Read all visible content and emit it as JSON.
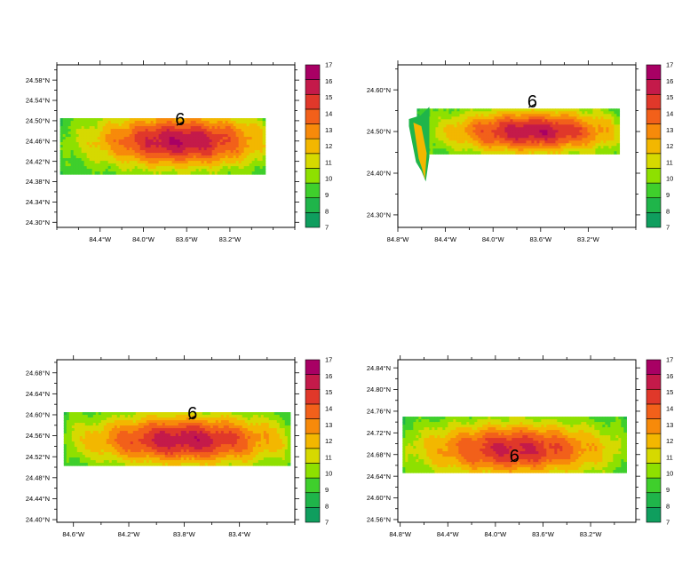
{
  "colorbar": {
    "levels": [
      "7",
      "8",
      "9",
      "10",
      "11",
      "12",
      "13",
      "14",
      "15",
      "16",
      "17"
    ],
    "colors": [
      "#0f9e5e",
      "#1fb54a",
      "#3fcf2c",
      "#8ee000",
      "#d6d900",
      "#f3b700",
      "#f78a0a",
      "#f2601a",
      "#e0382a",
      "#c41a4a",
      "#a80064"
    ]
  },
  "chart_data": [
    {
      "type": "heatmap",
      "xticks": [
        "84.4°W",
        "84.0°W",
        "83.6°W",
        "83.2°W"
      ],
      "yticks": [
        "24.30°N",
        "24.34°N",
        "24.38°N",
        "24.42°N",
        "24.46°N",
        "24.50°N",
        "24.54°N",
        "24.58°N"
      ],
      "xlim": [
        -84.8,
        -82.6
      ],
      "ylim": [
        24.29,
        24.61
      ],
      "marker": "6",
      "marker_pos": [
        -83.66,
        24.505
      ],
      "field": {
        "west": -84.77,
        "east": -82.88,
        "south": 24.398,
        "north": 24.505,
        "center": [
          -83.66,
          24.46
        ],
        "peak": 16.4,
        "edge": 8.4,
        "rx": 0.95,
        "ry": 0.062
      }
    },
    {
      "type": "heatmap",
      "xticks": [
        "84.8°W",
        "84.4°W",
        "84.0°W",
        "83.6°W",
        "83.2°W"
      ],
      "yticks": [
        "24.30°N",
        "24.40°N",
        "24.50°N",
        "24.60°N"
      ],
      "xlim": [
        -84.8,
        -82.8
      ],
      "ylim": [
        24.27,
        24.66
      ],
      "marker": "6",
      "marker_pos": [
        -83.67,
        24.575
      ],
      "field": {
        "west": -84.64,
        "east": -82.95,
        "south": 24.448,
        "north": 24.555,
        "center": [
          -83.67,
          24.5
        ],
        "peak": 16.3,
        "edge": 8.4,
        "rx": 0.85,
        "ry": 0.06
      },
      "spike": {
        "x": -84.58,
        "top": 24.53,
        "bottom": 24.38
      }
    },
    {
      "type": "heatmap",
      "xticks": [
        "84.6°W",
        "84.2°W",
        "83.8°W",
        "83.4°W"
      ],
      "yticks": [
        "24.40°N",
        "24.44°N",
        "24.48°N",
        "24.52°N",
        "24.56°N",
        "24.60°N",
        "24.64°N",
        "24.68°N"
      ],
      "xlim": [
        -84.72,
        -83.0
      ],
      "ylim": [
        24.395,
        24.705
      ],
      "marker": "6",
      "marker_pos": [
        -83.74,
        24.605
      ],
      "field": {
        "west": -84.67,
        "east": -83.04,
        "south": 24.505,
        "north": 24.605,
        "center": [
          -83.8,
          24.552
        ],
        "peak": 16.2,
        "edge": 8.4,
        "rx": 0.85,
        "ry": 0.056
      }
    },
    {
      "type": "heatmap",
      "xticks": [
        "84.8°W",
        "84.4°W",
        "84.0°W",
        "83.6°W",
        "83.2°W"
      ],
      "yticks": [
        "24.56°N",
        "24.60°N",
        "24.64°N",
        "24.68°N",
        "24.72°N",
        "24.76°N",
        "24.80°N",
        "24.84°N"
      ],
      "xlim": [
        -84.82,
        -82.82
      ],
      "ylim": [
        24.555,
        24.855
      ],
      "marker": "6",
      "marker_pos": [
        -83.84,
        24.68
      ],
      "field": {
        "west": -84.78,
        "east": -82.92,
        "south": 24.648,
        "north": 24.75,
        "center": [
          -83.84,
          24.69
        ],
        "peak": 15.7,
        "edge": 8.4,
        "rx": 0.95,
        "ry": 0.058
      }
    }
  ]
}
